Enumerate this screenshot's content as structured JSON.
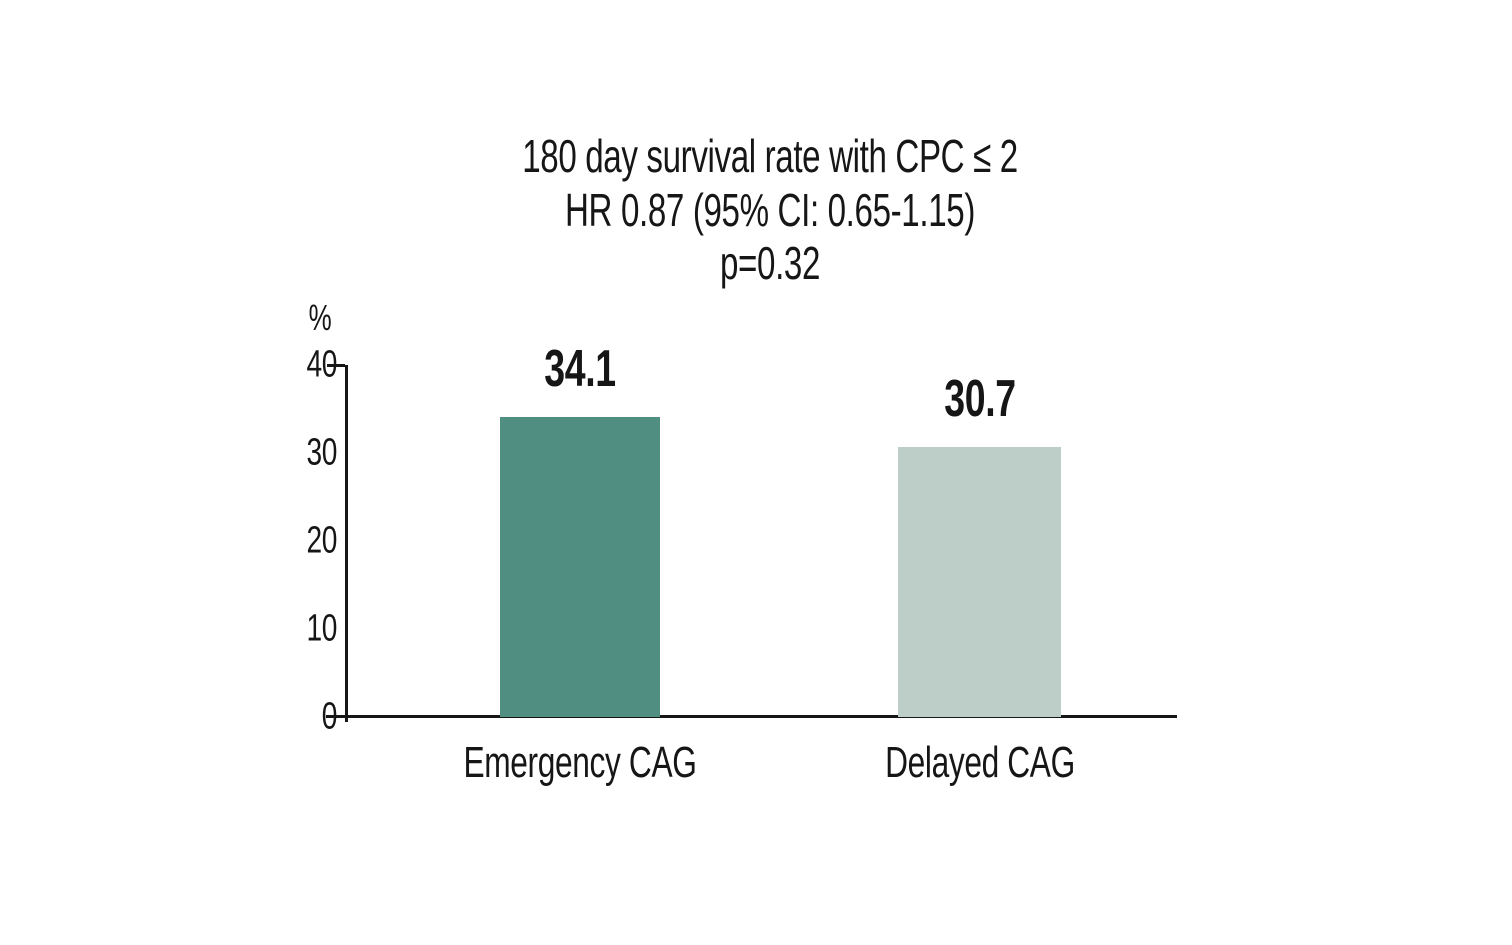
{
  "page": {
    "background": "#ffffff"
  },
  "chart_data": {
    "type": "bar",
    "title": "180 day survival rate with CPC ≤ 2",
    "subtitle": "HR 0.87 (95% CI: 0.65-1.15)",
    "subtitle2": "p=0.32",
    "ylabel": "%",
    "ylim": [
      0,
      40
    ],
    "y_ticks_top_to_bottom": [
      "40",
      "30",
      "20",
      "10",
      "0"
    ],
    "categories": [
      "Emergency CAG",
      "Delayed CAG"
    ],
    "values": [
      34.1,
      30.7
    ],
    "value_labels": [
      "34.1",
      "30.7"
    ],
    "bar_colors": [
      "#4F8E81",
      "#BDCDC8"
    ],
    "axis_color": "#161616",
    "grid": false,
    "legend_position": "none"
  }
}
